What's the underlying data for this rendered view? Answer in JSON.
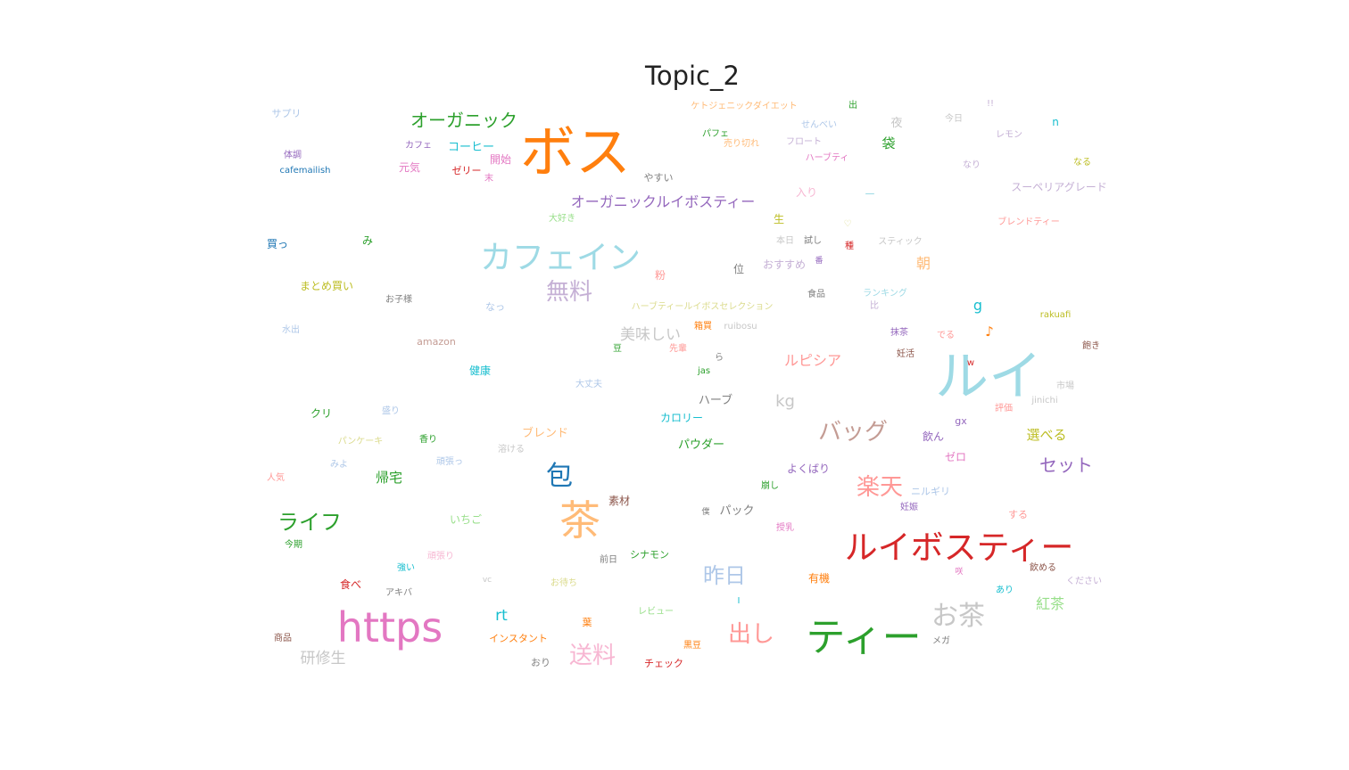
{
  "chart_data": {
    "type": "wordcloud",
    "title": "Topic_2",
    "words": [
      {
        "text": "ボス",
        "size": 5,
        "color": "#ff7f0e"
      },
      {
        "text": "ルイ",
        "size": 5,
        "color": "#9edae5"
      },
      {
        "text": "https",
        "size": 5,
        "color": "#e377c2"
      },
      {
        "text": "茶",
        "size": 5,
        "color": "#ffbb78"
      },
      {
        "text": "ルイボスティー",
        "size": 4,
        "color": "#d62728"
      },
      {
        "text": "ティー",
        "size": 4,
        "color": "#2ca02c"
      },
      {
        "text": "カフェイン",
        "size": 4,
        "color": "#9edae5"
      },
      {
        "text": "お茶",
        "size": 3,
        "color": "#c7c7c7"
      },
      {
        "text": "包",
        "size": 3,
        "color": "#1f77b4"
      },
      {
        "text": "無料",
        "size": 3,
        "color": "#c5b0d5"
      },
      {
        "text": "バッグ",
        "size": 3,
        "color": "#c49c94"
      },
      {
        "text": "楽天",
        "size": 3,
        "color": "#ff9896"
      },
      {
        "text": "出し",
        "size": 3,
        "color": "#ff9896"
      },
      {
        "text": "送料",
        "size": 3,
        "color": "#f7b6d2"
      },
      {
        "text": "昨日",
        "size": 3,
        "color": "#aec7e8"
      },
      {
        "text": "ライフ",
        "size": 3,
        "color": "#2ca02c"
      },
      {
        "text": "オーガニック",
        "size": 2,
        "color": "#2ca02c"
      },
      {
        "text": "オーガニックルイボスティー",
        "size": 2,
        "color": "#9467bd"
      },
      {
        "text": "セット",
        "size": 2,
        "color": "#9467bd"
      },
      {
        "text": "美味しい",
        "size": 2,
        "color": "#c7c7c7"
      },
      {
        "text": "研修生",
        "size": 2,
        "color": "#c7c7c7"
      },
      {
        "text": "ルピシア",
        "size": 2,
        "color": "#ff9896"
      },
      {
        "text": "rt",
        "size": 2,
        "color": "#17becf"
      },
      {
        "text": "kg",
        "size": 2,
        "color": "#c7c7c7"
      },
      {
        "text": "g",
        "size": 2,
        "color": "#17becf"
      },
      {
        "text": "紅茶",
        "size": 2,
        "color": "#98df8a"
      },
      {
        "text": "帰宅",
        "size": 2,
        "color": "#2ca02c"
      },
      {
        "text": "選べる",
        "size": 2,
        "color": "#bcbd22"
      },
      {
        "text": "コーヒー",
        "size": 1,
        "color": "#17becf"
      },
      {
        "text": "朝",
        "size": 1,
        "color": "#ffbb78"
      },
      {
        "text": "袋",
        "size": 1,
        "color": "#2ca02c"
      },
      {
        "text": "夜",
        "size": 1,
        "color": "#c7c7c7"
      },
      {
        "text": "元気",
        "size": 1,
        "color": "#e377c2"
      },
      {
        "text": "開始",
        "size": 1,
        "color": "#e377c2"
      },
      {
        "text": "健康",
        "size": 1,
        "color": "#17becf"
      },
      {
        "text": "ブレンド",
        "size": 1,
        "color": "#ffbb78"
      },
      {
        "text": "カロリー",
        "size": 1,
        "color": "#17becf"
      },
      {
        "text": "パウダー",
        "size": 1,
        "color": "#2ca02c"
      },
      {
        "text": "ハーブ",
        "size": 1,
        "color": "#7f7f7f"
      },
      {
        "text": "飲ん",
        "size": 1,
        "color": "#9467bd"
      },
      {
        "text": "ゼロ",
        "size": 1,
        "color": "#e377c2"
      },
      {
        "text": "よくばり",
        "size": 1,
        "color": "#9467bd"
      },
      {
        "text": "パック",
        "size": 1,
        "color": "#7f7f7f"
      },
      {
        "text": "素材",
        "size": 1,
        "color": "#8c564b"
      },
      {
        "text": "クリ",
        "size": 1,
        "color": "#2ca02c"
      },
      {
        "text": "いちご",
        "size": 1,
        "color": "#98df8a"
      },
      {
        "text": "まとめ買い",
        "size": 1,
        "color": "#bcbd22"
      },
      {
        "text": "amazon",
        "size": 1,
        "color": "#c49c94"
      },
      {
        "text": "なっ",
        "size": 1,
        "color": "#aec7e8"
      },
      {
        "text": "おすすめ",
        "size": 1,
        "color": "#c5b0d5"
      },
      {
        "text": "位",
        "size": 1,
        "color": "#7f7f7f"
      },
      {
        "text": "粉",
        "size": 1,
        "color": "#ff9896"
      },
      {
        "text": "スーペリアグレード",
        "size": 1,
        "color": "#c5b0d5"
      },
      {
        "text": "有機",
        "size": 1,
        "color": "#ff7f0e"
      },
      {
        "text": "食べ",
        "size": 1,
        "color": "#d62728"
      },
      {
        "text": "おり",
        "size": 1,
        "color": "#7f7f7f"
      },
      {
        "text": "シナモン",
        "size": 1,
        "color": "#2ca02c"
      },
      {
        "text": "インスタント",
        "size": 1,
        "color": "#ff7f0e"
      },
      {
        "text": "チェック",
        "size": 1,
        "color": "#d62728"
      },
      {
        "text": "ニルギリ",
        "size": 1,
        "color": "#aec7e8"
      },
      {
        "text": "する",
        "size": 1,
        "color": "#ff9896"
      },
      {
        "text": "gx",
        "size": 1,
        "color": "#9467bd"
      },
      {
        "text": "♪",
        "size": 1,
        "color": "#ff7f0e"
      },
      {
        "text": "入り",
        "size": 1,
        "color": "#f7b6d2"
      },
      {
        "text": "生",
        "size": 1,
        "color": "#bcbd22"
      },
      {
        "text": "サプリ",
        "size": 1,
        "color": "#aec7e8"
      },
      {
        "text": "体調",
        "size": 1,
        "color": "#9467bd"
      },
      {
        "text": "cafemailish",
        "size": 1,
        "color": "#1f77b4"
      },
      {
        "text": "買っ",
        "size": 1,
        "color": "#1f77b4"
      },
      {
        "text": "み",
        "size": 1,
        "color": "#2ca02c"
      },
      {
        "text": "カフェ",
        "size": 1,
        "color": "#9467bd"
      },
      {
        "text": "ゼリー",
        "size": 1,
        "color": "#d62728"
      },
      {
        "text": "末",
        "size": 1,
        "color": "#e377c2"
      },
      {
        "text": "やすい",
        "size": 1,
        "color": "#7f7f7f"
      },
      {
        "text": "大好き",
        "size": 1,
        "color": "#98df8a"
      },
      {
        "text": "ケトジェニックダイエット",
        "size": 1,
        "color": "#ffbb78"
      },
      {
        "text": "パフェ",
        "size": 1,
        "color": "#2ca02c"
      },
      {
        "text": "売り切れ",
        "size": 1,
        "color": "#ffbb78"
      },
      {
        "text": "フロート",
        "size": 1,
        "color": "#c5b0d5"
      },
      {
        "text": "ハーブティ",
        "size": 1,
        "color": "#e377c2"
      },
      {
        "text": "せんべい",
        "size": 1,
        "color": "#aec7e8"
      },
      {
        "text": "出",
        "size": 1,
        "color": "#2ca02c"
      },
      {
        "text": "今日",
        "size": 1,
        "color": "#c7c7c7"
      },
      {
        "text": "!!",
        "size": 1,
        "color": "#c5b0d5"
      },
      {
        "text": "レモン",
        "size": 1,
        "color": "#c5b0d5"
      },
      {
        "text": "n",
        "size": 1,
        "color": "#17becf"
      },
      {
        "text": "なり",
        "size": 1,
        "color": "#c5b0d5"
      },
      {
        "text": "なる",
        "size": 1,
        "color": "#bcbd22"
      },
      {
        "text": "ブレンドティー",
        "size": 1,
        "color": "#ff9896"
      },
      {
        "text": "ー",
        "size": 1,
        "color": "#9edae5"
      },
      {
        "text": "♡",
        "size": 1,
        "color": "#dbdb8d"
      },
      {
        "text": "本日",
        "size": 1,
        "color": "#c7c7c7"
      },
      {
        "text": "試し",
        "size": 1,
        "color": "#7f7f7f"
      },
      {
        "text": "種",
        "size": 1,
        "color": "#d62728"
      },
      {
        "text": "スティック",
        "size": 1,
        "color": "#c7c7c7"
      },
      {
        "text": "番",
        "size": 1,
        "color": "#9467bd"
      },
      {
        "text": "ランキング",
        "size": 1,
        "color": "#9edae5"
      },
      {
        "text": "比",
        "size": 1,
        "color": "#c5b0d5"
      },
      {
        "text": "食品",
        "size": 1,
        "color": "#7f7f7f"
      },
      {
        "text": "お子様",
        "size": 1,
        "color": "#7f7f7f"
      },
      {
        "text": "ハーブティールイボスセレクション",
        "size": 1,
        "color": "#dbdb8d"
      },
      {
        "text": "水出",
        "size": 1,
        "color": "#aec7e8"
      },
      {
        "text": "箱買",
        "size": 1,
        "color": "#ff7f0e"
      },
      {
        "text": "ruibosu",
        "size": 1,
        "color": "#c7c7c7"
      },
      {
        "text": "豆",
        "size": 1,
        "color": "#2ca02c"
      },
      {
        "text": "先輩",
        "size": 1,
        "color": "#ff9896"
      },
      {
        "text": "ら",
        "size": 1,
        "color": "#7f7f7f"
      },
      {
        "text": "jas",
        "size": 1,
        "color": "#2ca02c"
      },
      {
        "text": "抹茶",
        "size": 1,
        "color": "#9467bd"
      },
      {
        "text": "でる",
        "size": 1,
        "color": "#ff9896"
      },
      {
        "text": "妊活",
        "size": 1,
        "color": "#8c564b"
      },
      {
        "text": "rakuafi",
        "size": 1,
        "color": "#bcbd22"
      },
      {
        "text": "飽き",
        "size": 1,
        "color": "#8c564b"
      },
      {
        "text": "w",
        "size": 1,
        "color": "#d62728"
      },
      {
        "text": "大丈夫",
        "size": 1,
        "color": "#aec7e8"
      },
      {
        "text": "市場",
        "size": 1,
        "color": "#c7c7c7"
      },
      {
        "text": "jinichi",
        "size": 1,
        "color": "#c7c7c7"
      },
      {
        "text": "評価",
        "size": 1,
        "color": "#ff9896"
      },
      {
        "text": "盛り",
        "size": 1,
        "color": "#aec7e8"
      },
      {
        "text": "パンケーキ",
        "size": 1,
        "color": "#dbdb8d"
      },
      {
        "text": "香り",
        "size": 1,
        "color": "#2ca02c"
      },
      {
        "text": "溶ける",
        "size": 1,
        "color": "#c7c7c7"
      },
      {
        "text": "頑張っ",
        "size": 1,
        "color": "#aec7e8"
      },
      {
        "text": "みよ",
        "size": 1,
        "color": "#aec7e8"
      },
      {
        "text": "人気",
        "size": 1,
        "color": "#ff9896"
      },
      {
        "text": "崩し",
        "size": 1,
        "color": "#2ca02c"
      },
      {
        "text": "授乳",
        "size": 1,
        "color": "#e377c2"
      },
      {
        "text": "妊娠",
        "size": 1,
        "color": "#9467bd"
      },
      {
        "text": "今期",
        "size": 1,
        "color": "#2ca02c"
      },
      {
        "text": "頑張り",
        "size": 1,
        "color": "#f7b6d2"
      },
      {
        "text": "前日",
        "size": 1,
        "color": "#7f7f7f"
      },
      {
        "text": "僕",
        "size": 1,
        "color": "#7f7f7f"
      },
      {
        "text": "強い",
        "size": 1,
        "color": "#17becf"
      },
      {
        "text": "アキバ",
        "size": 1,
        "color": "#7f7f7f"
      },
      {
        "text": "vc",
        "size": 1,
        "color": "#c7c7c7"
      },
      {
        "text": "お待ち",
        "size": 1,
        "color": "#dbdb8d"
      },
      {
        "text": "I",
        "size": 1,
        "color": "#17becf"
      },
      {
        "text": "飲める",
        "size": 1,
        "color": "#8c564b"
      },
      {
        "text": "ください",
        "size": 1,
        "color": "#c5b0d5"
      },
      {
        "text": "あり",
        "size": 1,
        "color": "#17becf"
      },
      {
        "text": "商品",
        "size": 1,
        "color": "#8c564b"
      },
      {
        "text": "葉",
        "size": 1,
        "color": "#ff7f0e"
      },
      {
        "text": "レビュー",
        "size": 1,
        "color": "#98df8a"
      },
      {
        "text": "黒豆",
        "size": 1,
        "color": "#ff7f0e"
      },
      {
        "text": "メガ",
        "size": 1,
        "color": "#7f7f7f"
      },
      {
        "text": "咲",
        "size": 1,
        "color": "#e377c2"
      }
    ]
  }
}
